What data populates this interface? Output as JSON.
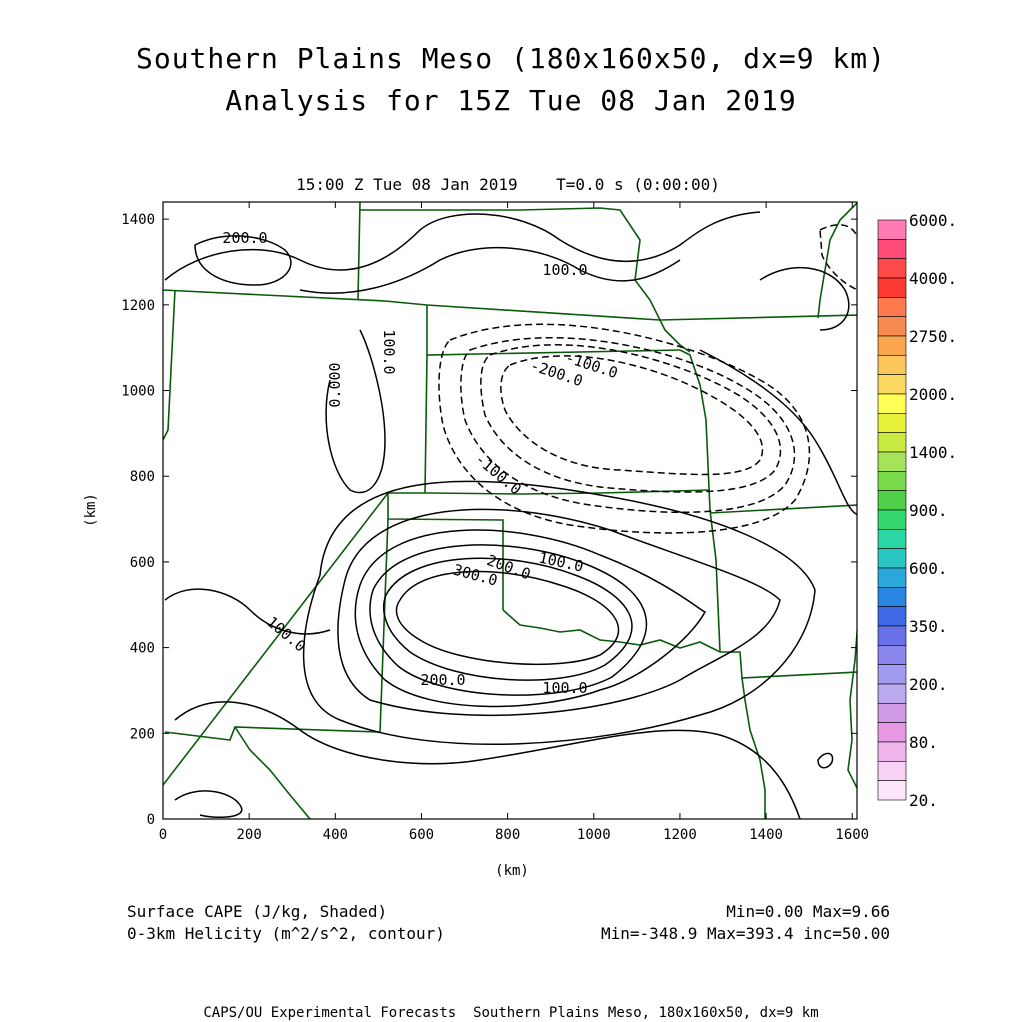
{
  "titles": {
    "line1": "Southern Plains Meso (180x160x50, dx=9 km)",
    "line2": "Analysis for 15Z Tue 08 Jan 2019",
    "time": "15:00 Z Tue 08 Jan 2019    T=0.0 s (0:00:00)"
  },
  "axes": {
    "x_label": "(km)",
    "y_label": "(km)",
    "x_ticks": [
      0,
      200,
      400,
      600,
      800,
      1000,
      1200,
      1400,
      1600
    ],
    "y_ticks": [
      0,
      200,
      400,
      600,
      800,
      1000,
      1200,
      1400
    ],
    "x_range": [
      0,
      1611
    ],
    "y_range": [
      0,
      1440
    ]
  },
  "colorbar": {
    "labels": [
      "6000.",
      "4000.",
      "2750.",
      "2000.",
      "1400.",
      "900.",
      "600.",
      "350.",
      "200.",
      "80.",
      "20."
    ],
    "colors": [
      "#ff7bb3",
      "#ff4c78",
      "#ff4a4a",
      "#ff3a30",
      "#ff7b4f",
      "#f68a50",
      "#f9a64d",
      "#fbc65b",
      "#fcd860",
      "#ffff55",
      "#e7f238",
      "#c8ea43",
      "#a6e35a",
      "#79da4c",
      "#4fd048",
      "#34d66e",
      "#2bd7a4",
      "#2ac6c4",
      "#2aa8d9",
      "#2a85e3",
      "#3e6ae6",
      "#6a70e8",
      "#8a86ec",
      "#a39bef",
      "#bcaaf0",
      "#d09ae6",
      "#e79ae3",
      "#f0b6ec",
      "#f8d2f4",
      "#fde6fb"
    ]
  },
  "contour_labels": [
    "200.0",
    "100.0",
    "100.0",
    "0.000",
    "-100.0",
    "-200.0",
    "-100.0",
    "100.0",
    "200.0",
    "300.0",
    "100.0",
    "200.0",
    "100.0"
  ],
  "legend": {
    "left1": "Surface CAPE (J/kg, Shaded)",
    "left2": "0-3km Helicity (m^2/s^2, contour)",
    "right1": "Min=0.00 Max=9.66",
    "right2": "Min=-348.9 Max=393.4 inc=50.00"
  },
  "footer": "CAPS/OU Experimental Forecasts  Southern Plains Meso, 180x160x50, dx=9 km",
  "colors": {
    "border": "#0a5a0a",
    "contour": "#000000"
  }
}
